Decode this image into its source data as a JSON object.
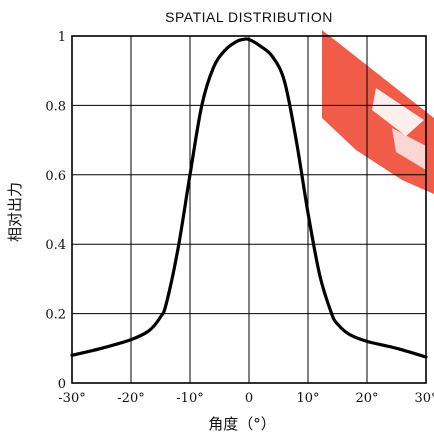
{
  "chart_data": {
    "type": "line",
    "title": "SPATIAL DISTRIBUTION",
    "xlabel": "角度（°）",
    "ylabel": "相对出力",
    "xlim": [
      -30,
      30
    ],
    "ylim": [
      0,
      1
    ],
    "grid": true,
    "x_ticks": [
      -30,
      -20,
      -10,
      0,
      10,
      20,
      30
    ],
    "y_ticks": [
      0,
      0.2,
      0.4,
      0.6,
      0.8,
      1
    ],
    "x_tick_labels": [
      "-30°",
      "-20°",
      "-10°",
      "0",
      "10°",
      "20°",
      "30°"
    ],
    "y_tick_labels": [
      "0",
      "0.2",
      "0.4",
      "0.6",
      "0.8",
      "1"
    ],
    "series": [
      {
        "x": [
          -30,
          -25,
          -20,
          -17,
          -15,
          -14,
          -12,
          -10,
          -8,
          -6,
          -4,
          -2,
          -1,
          0,
          2,
          4,
          6,
          8,
          10,
          12,
          14,
          15,
          17,
          20,
          25,
          30
        ],
        "y": [
          0.08,
          0.1,
          0.125,
          0.15,
          0.19,
          0.23,
          0.39,
          0.6,
          0.8,
          0.91,
          0.96,
          0.985,
          0.99,
          0.99,
          0.97,
          0.94,
          0.87,
          0.7,
          0.49,
          0.31,
          0.2,
          0.17,
          0.14,
          0.12,
          0.1,
          0.075
        ],
        "color": "#000000"
      }
    ]
  },
  "watermark": {
    "color": "#f04e3a"
  }
}
